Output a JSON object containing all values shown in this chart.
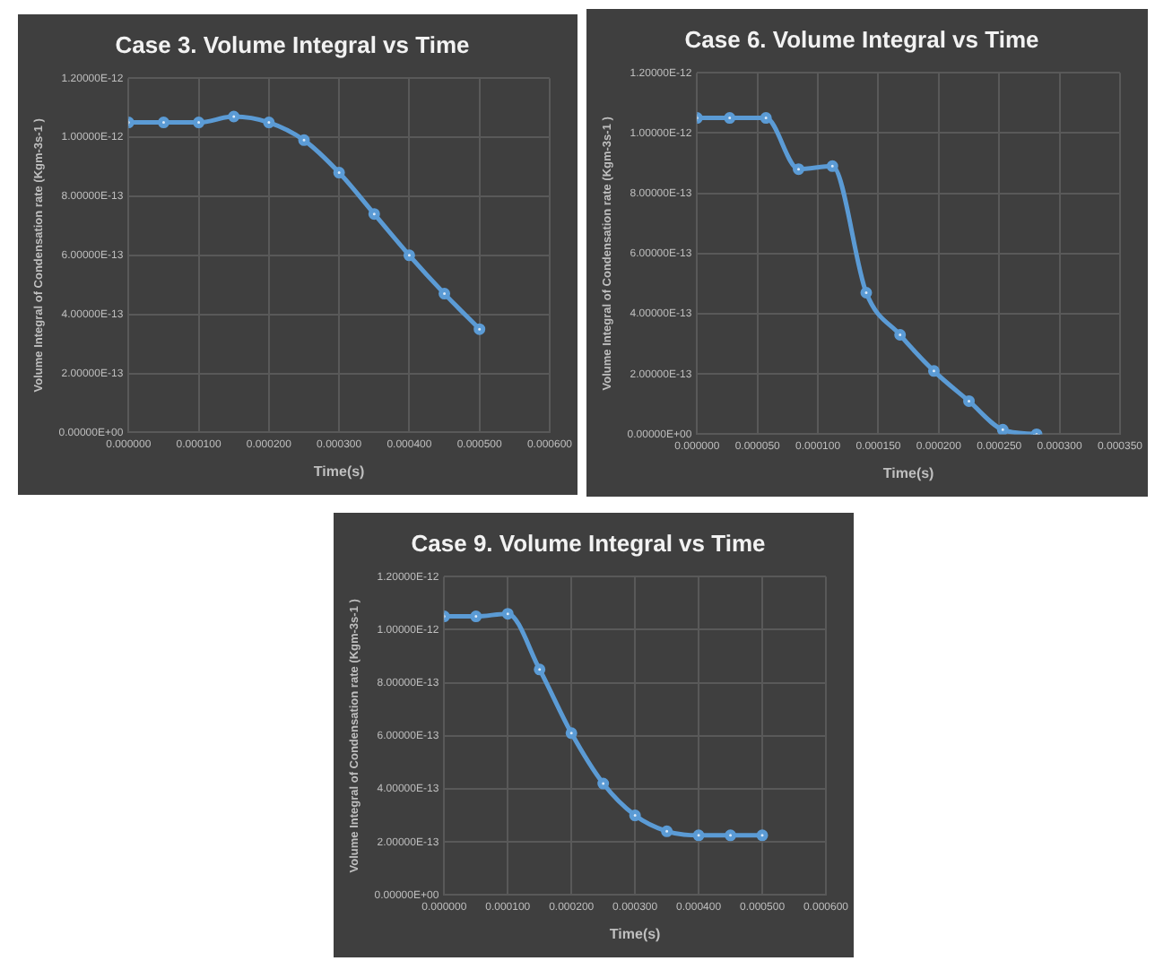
{
  "chart_data": [
    {
      "type": "line",
      "title": "Case 3. Volume Integral vs Time",
      "xlabel": "Time(s)",
      "ylabel": "Volume Integral of Condensation rate (Kgm-3s-1 )",
      "marker": "circle",
      "grid": true,
      "legend": false,
      "xlim": [
        0,
        0.0006
      ],
      "xticks": [
        {
          "value": 0,
          "label": "0.000000"
        },
        {
          "value": 0.0001,
          "label": "0.000100"
        },
        {
          "value": 0.0002,
          "label": "0.000200"
        },
        {
          "value": 0.0003,
          "label": "0.000300"
        },
        {
          "value": 0.0004,
          "label": "0.000400"
        },
        {
          "value": 0.0005,
          "label": "0.000500"
        },
        {
          "value": 0.0006,
          "label": "0.000600"
        }
      ],
      "ylim": [
        0,
        1.2e-12
      ],
      "yticks": [
        {
          "value": 0,
          "label": "0.00000E+00"
        },
        {
          "value": 2e-13,
          "label": "2.00000E-13"
        },
        {
          "value": 4e-13,
          "label": "4.00000E-13"
        },
        {
          "value": 6e-13,
          "label": "6.00000E-13"
        },
        {
          "value": 8e-13,
          "label": "8.00000E-13"
        },
        {
          "value": 1e-12,
          "label": "1.00000E-12"
        },
        {
          "value": 1.2e-12,
          "label": "1.20000E-12"
        }
      ],
      "series": [
        {
          "color": "#5b9bd5",
          "x": [
            0,
            5e-05,
            0.0001,
            0.00015,
            0.0002,
            0.00025,
            0.0003,
            0.00035,
            0.0004,
            0.00045,
            0.0005
          ],
          "values": [
            1.05e-12,
            1.05e-12,
            1.05e-12,
            1.07e-12,
            1.05e-12,
            9.9e-13,
            8.8e-13,
            7.4e-13,
            6e-13,
            4.7e-13,
            3.5e-13
          ]
        }
      ]
    },
    {
      "type": "line",
      "title": "Case 6. Volume Integral vs Time",
      "xlabel": "Time(s)",
      "ylabel": "Volume Integral of Condensation rate (Kgm-3s-1 )",
      "marker": "circle",
      "grid": true,
      "legend": false,
      "xlim": [
        0,
        0.00035
      ],
      "xticks": [
        {
          "value": 0,
          "label": "0.000000"
        },
        {
          "value": 5e-05,
          "label": "0.000050"
        },
        {
          "value": 0.0001,
          "label": "0.000100"
        },
        {
          "value": 0.00015,
          "label": "0.000150"
        },
        {
          "value": 0.0002,
          "label": "0.000200"
        },
        {
          "value": 0.00025,
          "label": "0.000250"
        },
        {
          "value": 0.0003,
          "label": "0.000300"
        },
        {
          "value": 0.00035,
          "label": "0.000350"
        }
      ],
      "ylim": [
        0,
        1.2e-12
      ],
      "yticks": [
        {
          "value": 0,
          "label": "0.00000E+00"
        },
        {
          "value": 2e-13,
          "label": "2.00000E-13"
        },
        {
          "value": 4e-13,
          "label": "4.00000E-13"
        },
        {
          "value": 6e-13,
          "label": "6.00000E-13"
        },
        {
          "value": 8e-13,
          "label": "8.00000E-13"
        },
        {
          "value": 1e-12,
          "label": "1.00000E-12"
        },
        {
          "value": 1.2e-12,
          "label": "1.20000E-12"
        }
      ],
      "series": [
        {
          "color": "#5b9bd5",
          "x": [
            0,
            2.7e-05,
            5.7e-05,
            8.4e-05,
            0.000112,
            0.00014,
            0.000168,
            0.000196,
            0.000225,
            0.000253,
            0.000281
          ],
          "values": [
            1.05e-12,
            1.05e-12,
            1.05e-12,
            8.8e-13,
            8.9e-13,
            4.7e-13,
            3.3e-13,
            2.1e-13,
            1.1e-13,
            1.5e-14,
            0
          ]
        }
      ]
    },
    {
      "type": "line",
      "title": "Case 9. Volume Integral vs Time",
      "xlabel": "Time(s)",
      "ylabel": "Volume Integral of Condensation rate (Kgm-3s-1 )",
      "marker": "circle",
      "grid": true,
      "legend": false,
      "xlim": [
        0,
        0.0006
      ],
      "xticks": [
        {
          "value": 0,
          "label": "0.000000"
        },
        {
          "value": 0.0001,
          "label": "0.000100"
        },
        {
          "value": 0.0002,
          "label": "0.000200"
        },
        {
          "value": 0.0003,
          "label": "0.000300"
        },
        {
          "value": 0.0004,
          "label": "0.000400"
        },
        {
          "value": 0.0005,
          "label": "0.000500"
        },
        {
          "value": 0.0006,
          "label": "0.000600"
        }
      ],
      "ylim": [
        0,
        1.2e-12
      ],
      "yticks": [
        {
          "value": 0,
          "label": "0.00000E+00"
        },
        {
          "value": 2e-13,
          "label": "2.00000E-13"
        },
        {
          "value": 4e-13,
          "label": "4.00000E-13"
        },
        {
          "value": 6e-13,
          "label": "6.00000E-13"
        },
        {
          "value": 8e-13,
          "label": "8.00000E-13"
        },
        {
          "value": 1e-12,
          "label": "1.00000E-12"
        },
        {
          "value": 1.2e-12,
          "label": "1.20000E-12"
        }
      ],
      "series": [
        {
          "color": "#5b9bd5",
          "x": [
            0,
            5e-05,
            0.0001,
            0.00015,
            0.0002,
            0.00025,
            0.0003,
            0.00035,
            0.0004,
            0.00045,
            0.0005
          ],
          "values": [
            1.05e-12,
            1.05e-12,
            1.06e-12,
            8.5e-13,
            6.1e-13,
            4.2e-13,
            3e-13,
            2.4e-13,
            2.25e-13,
            2.25e-13,
            2.25e-13
          ]
        }
      ]
    }
  ]
}
